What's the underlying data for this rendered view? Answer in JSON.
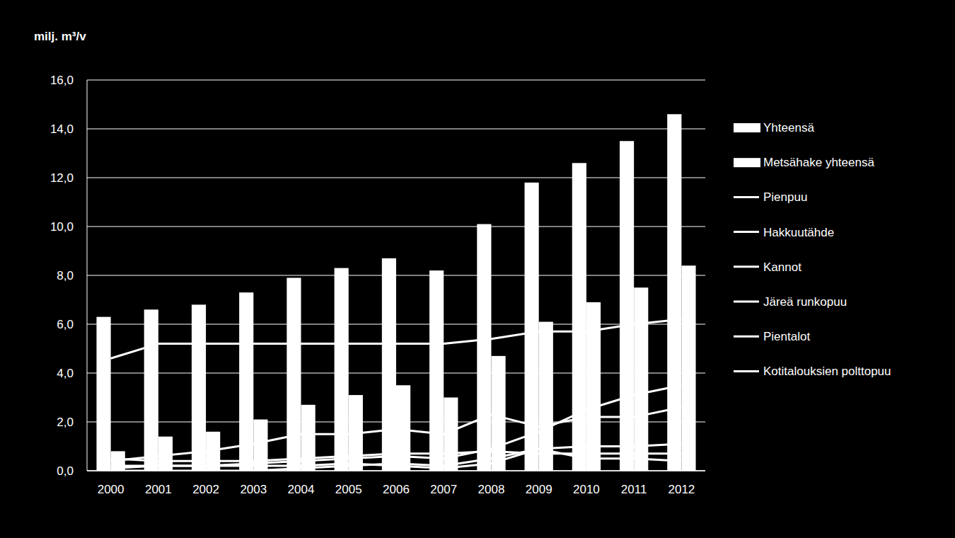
{
  "chart_data": {
    "type": "bar",
    "y_label": "milj. m³/v",
    "categories": [
      "2000",
      "2001",
      "2002",
      "2003",
      "2004",
      "2005",
      "2006",
      "2007",
      "2008",
      "2009",
      "2010",
      "2011",
      "2012"
    ],
    "series": [
      {
        "name": "Yhteensä",
        "type": "bar",
        "color": "#ffffff",
        "values": [
          6.3,
          6.6,
          6.8,
          7.3,
          7.9,
          8.3,
          8.7,
          8.2,
          10.1,
          11.8,
          12.6,
          13.5,
          14.6
        ]
      },
      {
        "name": "Metsähake yhteensä",
        "type": "bar",
        "color": "#ffffff",
        "values": [
          0.8,
          1.4,
          1.6,
          2.1,
          2.7,
          3.1,
          3.5,
          3.0,
          4.7,
          6.1,
          6.9,
          7.5,
          8.4
        ]
      },
      {
        "name": "Pienpuu",
        "type": "line",
        "color": "#ffffff",
        "values": [
          0.2,
          0.2,
          0.2,
          0.3,
          0.4,
          0.5,
          0.6,
          0.5,
          0.9,
          1.6,
          2.5,
          3.1,
          3.5
        ]
      },
      {
        "name": "Hakkuutähde",
        "type": "line",
        "color": "#ffffff",
        "values": [
          0.4,
          0.6,
          0.8,
          1.1,
          1.5,
          1.5,
          1.7,
          1.5,
          2.3,
          1.8,
          2.2,
          2.2,
          2.6
        ]
      },
      {
        "name": "Kannot",
        "type": "line",
        "color": "#ffffff",
        "values": [
          0.0,
          0.0,
          0.0,
          0.0,
          0.1,
          0.2,
          0.3,
          0.2,
          0.5,
          0.9,
          1.0,
          1.0,
          1.1
        ]
      },
      {
        "name": "Järeä runkopuu",
        "type": "line",
        "color": "#ffffff",
        "values": [
          0.1,
          0.2,
          0.2,
          0.2,
          0.2,
          0.3,
          0.2,
          0.1,
          0.3,
          0.9,
          0.5,
          0.5,
          0.4
        ]
      },
      {
        "name": "Pientalot",
        "type": "line",
        "color": "#ffffff",
        "values": [
          0.5,
          0.4,
          0.4,
          0.4,
          0.5,
          0.6,
          0.7,
          0.7,
          0.8,
          0.7,
          0.7,
          0.7,
          0.7
        ]
      },
      {
        "name": "Kotitalouksien polttopuu",
        "type": "line",
        "color": "#ffffff",
        "values": [
          4.6,
          5.2,
          5.2,
          5.2,
          5.2,
          5.2,
          5.2,
          5.2,
          5.4,
          5.7,
          5.7,
          6.0,
          6.2
        ]
      }
    ],
    "ylim": [
      0,
      16
    ],
    "yticks": [
      {
        "value": 0,
        "label": "0,0"
      },
      {
        "value": 2,
        "label": "2,0"
      },
      {
        "value": 4,
        "label": "4,0"
      },
      {
        "value": 6,
        "label": "6,0"
      },
      {
        "value": 8,
        "label": "8,0"
      },
      {
        "value": 10,
        "label": "10,0"
      },
      {
        "value": 12,
        "label": "12,0"
      },
      {
        "value": 14,
        "label": "14,0"
      },
      {
        "value": 16,
        "label": "16,0"
      }
    ],
    "grid": true,
    "legend": "right"
  }
}
